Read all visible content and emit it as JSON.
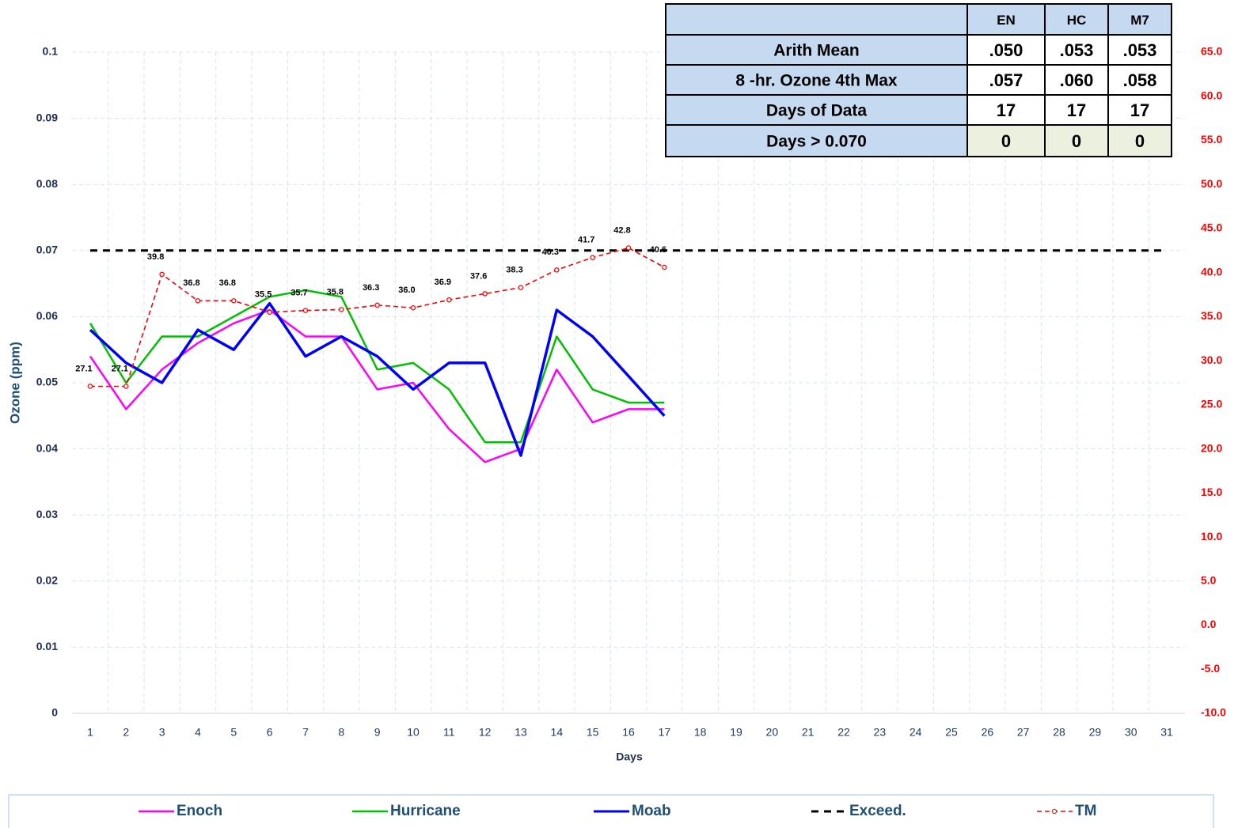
{
  "chart_data": {
    "type": "line",
    "y_label": "Ozone  (ppm)",
    "x_label": "Days",
    "categories": [
      1,
      2,
      3,
      4,
      5,
      6,
      7,
      8,
      9,
      10,
      11,
      12,
      13,
      14,
      15,
      16,
      17,
      18,
      19,
      20,
      21,
      22,
      23,
      24,
      25,
      26,
      27,
      28,
      29,
      30,
      31
    ],
    "ylim": [
      0,
      0.1
    ],
    "yticks": [
      0,
      0.01,
      0.02,
      0.03,
      0.04,
      0.05,
      0.06,
      0.07,
      0.08,
      0.09,
      0.1
    ],
    "y2lim": [
      -10,
      65
    ],
    "y2ticks": [
      {
        "value": -10,
        "label": "-10.0"
      },
      {
        "value": -5,
        "label": "-5.0"
      },
      {
        "value": 0,
        "label": "0.0"
      },
      {
        "value": 5,
        "label": "5.0"
      },
      {
        "value": 10,
        "label": "10.0"
      },
      {
        "value": 15,
        "label": "15.0"
      },
      {
        "value": 20,
        "label": "20.0"
      },
      {
        "value": 25,
        "label": "25.0"
      },
      {
        "value": 30,
        "label": "30.0"
      },
      {
        "value": 35,
        "label": "35.0"
      },
      {
        "value": 40,
        "label": "40.0"
      },
      {
        "value": 45,
        "label": "45.0"
      },
      {
        "value": 50,
        "label": "50.0"
      },
      {
        "value": 55,
        "label": "55.0"
      },
      {
        "value": 60,
        "label": "60.0"
      },
      {
        "value": 65,
        "label": "65.0"
      }
    ],
    "grid": true,
    "series": [
      {
        "name": "Enoch",
        "color": "#ff00ff",
        "values": [
          0.054,
          0.046,
          0.052,
          0.056,
          0.059,
          0.061,
          0.057,
          0.057,
          0.049,
          0.05,
          0.043,
          0.038,
          0.04,
          0.052,
          0.044,
          0.046,
          0.046,
          null,
          null,
          null,
          null,
          null,
          null,
          null,
          null,
          null,
          null,
          null,
          null,
          null,
          null
        ]
      },
      {
        "name": "Hurricane",
        "color": "#00c000",
        "values": [
          0.059,
          0.05,
          0.057,
          0.057,
          0.06,
          0.063,
          0.064,
          0.063,
          0.052,
          0.053,
          0.049,
          0.041,
          0.041,
          0.057,
          0.049,
          0.047,
          0.047,
          null,
          null,
          null,
          null,
          null,
          null,
          null,
          null,
          null,
          null,
          null,
          null,
          null,
          null
        ]
      },
      {
        "name": "Moab",
        "color": "#0000ff",
        "values": [
          0.058,
          0.053,
          0.05,
          0.058,
          0.055,
          0.062,
          0.054,
          0.057,
          0.054,
          0.049,
          0.053,
          0.053,
          0.039,
          0.061,
          0.057,
          0.051,
          0.045,
          null,
          null,
          null,
          null,
          null,
          null,
          null,
          null,
          null,
          null,
          null,
          null,
          null,
          null
        ]
      },
      {
        "name": "Exceed.",
        "color": "#000000",
        "values": [
          0.07,
          0.07,
          0.07,
          0.07,
          0.07,
          0.07,
          0.07,
          0.07,
          0.07,
          0.07,
          0.07,
          0.07,
          0.07,
          0.07,
          0.07,
          0.07,
          0.07,
          0.07,
          0.07,
          0.07,
          0.07,
          0.07,
          0.07,
          0.07,
          0.07,
          0.07,
          0.07,
          0.07,
          0.07,
          0.07,
          0.07
        ]
      },
      {
        "name": "TM",
        "color": "#ff0000",
        "axis": "y2",
        "values": [
          27.1,
          27.1,
          39.8,
          36.8,
          36.8,
          35.5,
          35.7,
          35.8,
          36.3,
          36.0,
          36.9,
          37.6,
          38.3,
          40.3,
          41.7,
          42.8,
          40.6,
          null,
          null,
          null,
          null,
          null,
          null,
          null,
          null,
          null,
          null,
          null,
          null,
          null,
          null
        ],
        "value_labels": [
          "27.1",
          "27.1",
          "39.8",
          "36.8",
          "36.8",
          "35.5",
          "35.7",
          "35.8",
          "36.3",
          "36.0",
          "36.9",
          "37.6",
          "38.3",
          "40.3",
          "41.7",
          "42.8",
          "40.6",
          null,
          null,
          null,
          null,
          null,
          null,
          null,
          null,
          null,
          null,
          null,
          null,
          null,
          null
        ]
      }
    ]
  },
  "table": {
    "header": [
      "EN",
      "HC",
      "M7"
    ],
    "rows": [
      [
        "Arith Mean",
        ".050",
        ".053",
        ".053"
      ],
      [
        "8 -hr. Ozone 4th Max",
        ".057",
        ".060",
        ".058"
      ],
      [
        "Days of Data",
        "17",
        "17",
        "17"
      ],
      [
        "Days > 0.070",
        "0",
        "0",
        "0"
      ]
    ]
  }
}
